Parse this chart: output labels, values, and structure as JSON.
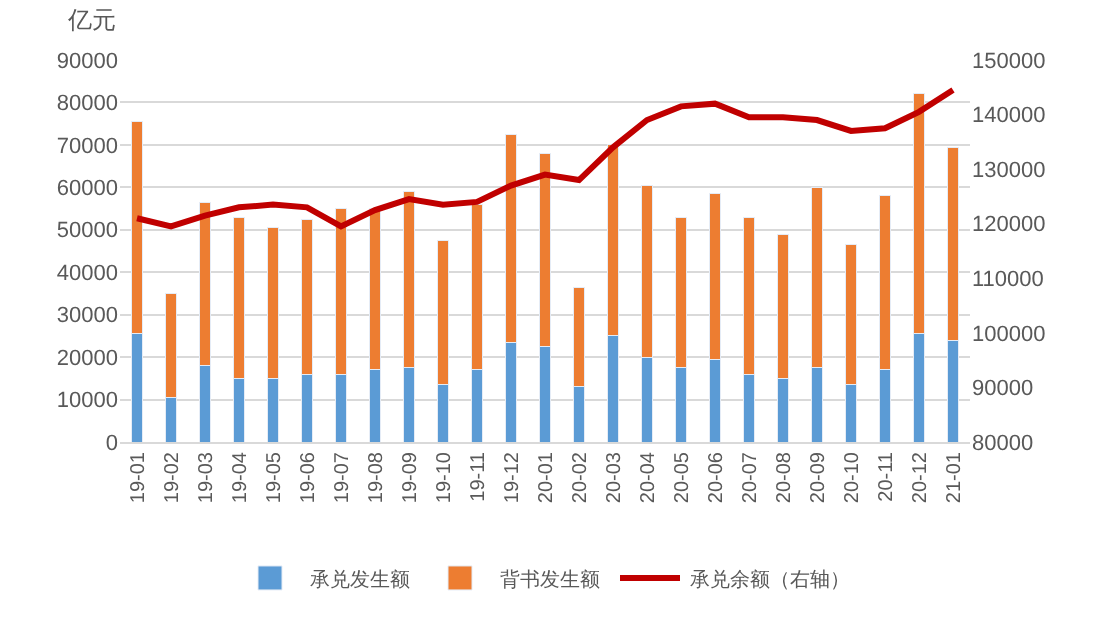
{
  "chart_data": {
    "type": "bar",
    "stacked": true,
    "ylabel": "亿元",
    "categories": [
      "19-01",
      "19-02",
      "19-03",
      "19-04",
      "19-05",
      "19-06",
      "19-07",
      "19-08",
      "19-09",
      "19-10",
      "19-11",
      "19-12",
      "20-01",
      "20-02",
      "20-03",
      "20-04",
      "20-05",
      "20-06",
      "20-07",
      "20-08",
      "20-09",
      "20-10",
      "20-11",
      "20-12",
      "21-01"
    ],
    "series": [
      {
        "name": "承兑发生额",
        "color": "#5b9bd5",
        "values": [
          25500,
          10500,
          18000,
          15000,
          15000,
          16000,
          16000,
          17000,
          17500,
          13500,
          17000,
          23500,
          22500,
          13000,
          25000,
          20000,
          17500,
          19500,
          16000,
          15000,
          17500,
          13500,
          17000,
          25500,
          24000
        ]
      },
      {
        "name": "背书发生额",
        "color": "#ed7d31",
        "values": [
          50000,
          24500,
          38500,
          38000,
          35500,
          36500,
          39000,
          38000,
          41500,
          34000,
          39000,
          49000,
          45500,
          23500,
          45000,
          40500,
          35500,
          39000,
          37000,
          34000,
          42500,
          33000,
          41000,
          56500,
          45500
        ]
      },
      {
        "name": "承兑余额（右轴）",
        "type": "line",
        "axis": "y2",
        "color": "#c00000",
        "values": [
          121000,
          119500,
          121500,
          123000,
          123500,
          123000,
          119500,
          122500,
          124500,
          123500,
          124000,
          127000,
          129000,
          128000,
          134000,
          139000,
          141500,
          142000,
          139500,
          139500,
          139000,
          137000,
          137500,
          140500,
          144500
        ]
      }
    ],
    "ylim": [
      0,
      90000
    ],
    "yticks": [
      0,
      10000,
      20000,
      30000,
      40000,
      50000,
      60000,
      70000,
      80000,
      90000
    ],
    "y2lim": [
      80000,
      150000
    ],
    "y2ticks": [
      80000,
      90000,
      100000,
      110000,
      120000,
      130000,
      140000,
      150000
    ],
    "grid": "y",
    "legend": "bottom",
    "marker": "none",
    "line_style": "solid"
  }
}
